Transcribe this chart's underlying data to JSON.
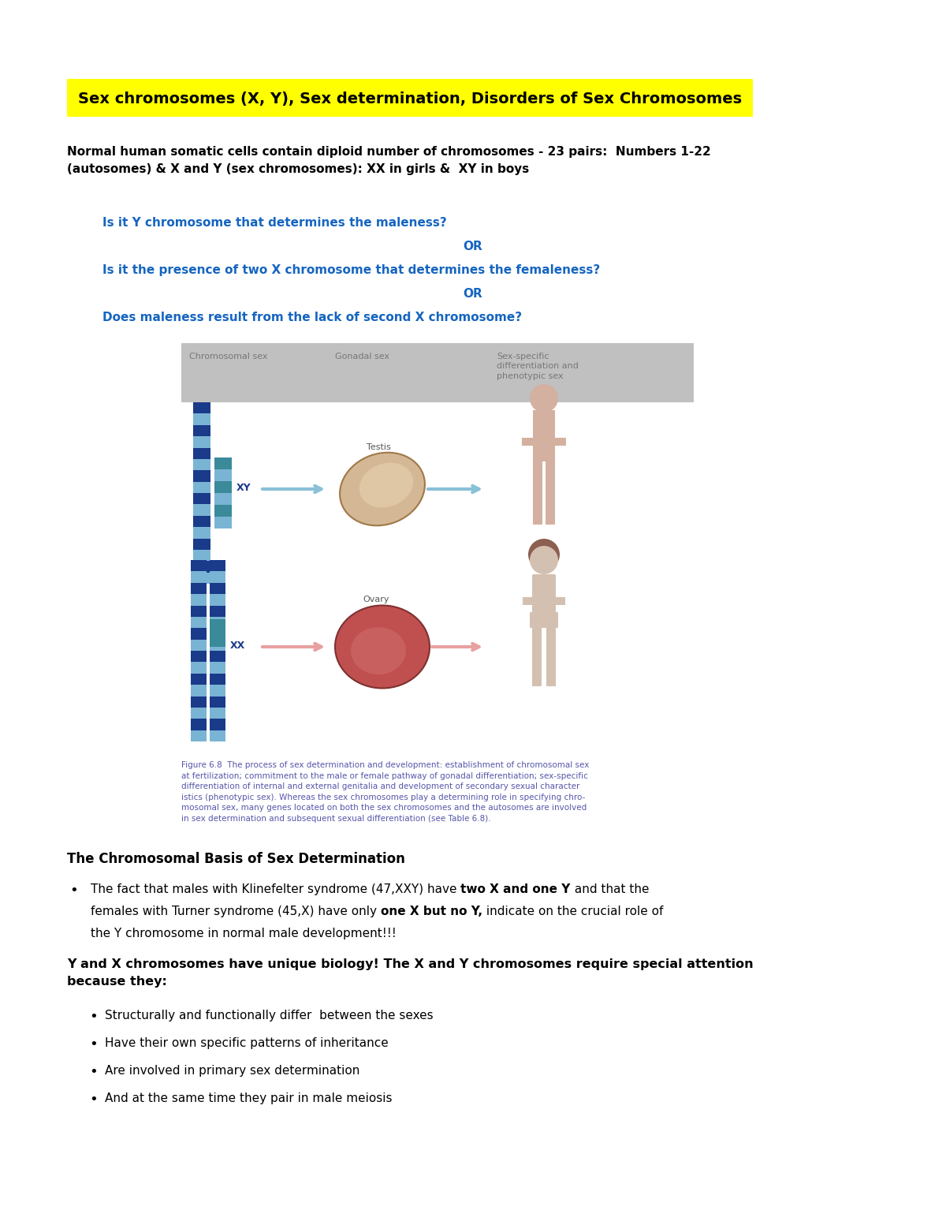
{
  "title": "Sex chromosomes (X, Y), Sex determination, Disorders of Sex Chromosomes",
  "title_bg": "#FFFF00",
  "title_color": "#000000",
  "body_color": "#000000",
  "blue_color": "#1565C0",
  "page_bg": "#FFFFFF",
  "intro_text": "Normal human somatic cells contain diploid number of chromosomes - 23 pairs:  Numbers 1-22\n(autosomes) & X and Y (sex chromosomes): XX in girls &  XY in boys",
  "question1": "Is it Y chromosome that determines the maleness?",
  "or1": "OR",
  "question2": "Is it the presence of two X chromosome that determines the femaleness?",
  "or2": "OR",
  "question3": "Does maleness result from the lack of second X chromosome?",
  "fig_col1": "Chromosomal sex",
  "fig_col2": "Gonadal sex",
  "fig_col3": "Sex-specific\ndifferentiation and\nphenotypic sex",
  "fig_caption": "Figure 6.8  The process of sex determination and development: establishment of chromosomal sex\nat fertilization; commitment to the male or female pathway of gonadal differentiation; sex-specific\ndifferentiation of internal and external genitalia and development of secondary sexual character\nistics (phenotypic sex). Whereas the sex chromosomes play a determining role in specifying chro-\nmosomal sex, many genes located on both the sex chromosomes and the autosomes are involved\nin sex determination and subsequent sexual differentiation (see Table 6.8).",
  "section_title": "The Chromosomal Basis of Sex Determination",
  "bullet1_p1": "The fact that males with Klinefelter syndrome (47,XXY) have ",
  "bullet1_bold1": "two X and one Y",
  "bullet1_p2": " and that the",
  "bullet1_p3": "females with Turner syndrome (45,X) have only ",
  "bullet1_bold2": "one X but no Y,",
  "bullet1_p4": " indicate on the crucial role of",
  "bullet1_p5": "the Y chromosome in normal male development!!!",
  "bold_para": "Y and X chromosomes have unique biology! The X and Y chromosomes require special attention\nbecause they:",
  "sub_bullets": [
    "Structurally and functionally differ  between the sexes",
    "Have their own specific patterns of inheritance",
    "Are involved in primary sex determination",
    "And at the same time they pair in male meiosis"
  ],
  "chr_dark": "#1a3a8a",
  "chr_light": "#7ab4d4",
  "chr_teal": "#3a8a9a",
  "arrow_blue": "#8ac0d8",
  "arrow_pink": "#e8a0a0",
  "gray_box": "#C0C0C0",
  "fig_caption_color": "#5555aa",
  "fig_gray_text": "#777777"
}
